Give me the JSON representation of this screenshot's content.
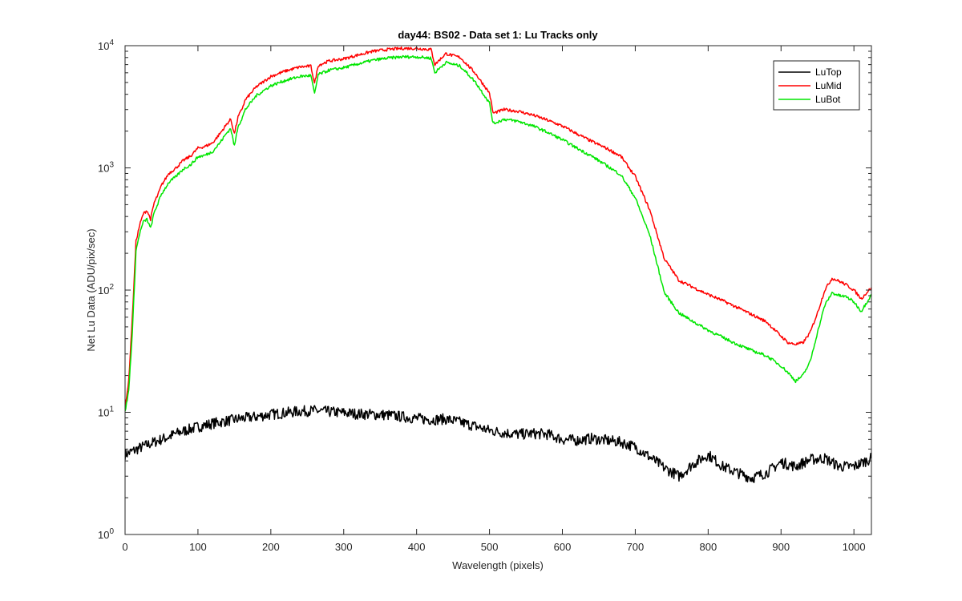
{
  "chart_data": {
    "type": "line",
    "title": "day44: BS02 - Data set 1: Lu Tracks only",
    "xlabel": "Wavelength (pixels)",
    "ylabel": "Net Lu Data (ADU/pix/sec)",
    "xlim": [
      0,
      1024
    ],
    "ylim": [
      1,
      10000
    ],
    "yscale": "log",
    "x_ticks": [
      "0",
      "100",
      "200",
      "300",
      "400",
      "500",
      "600",
      "700",
      "800",
      "900",
      "1000"
    ],
    "y_ticks": [
      {
        "base": "10",
        "exp": "0"
      },
      {
        "base": "10",
        "exp": "1"
      },
      {
        "base": "10",
        "exp": "2"
      },
      {
        "base": "10",
        "exp": "3"
      },
      {
        "base": "10",
        "exp": "4"
      }
    ],
    "grid": false,
    "legend_position": "top-right",
    "series": [
      {
        "name": "LuTop",
        "color": "#000000",
        "x": [
          0,
          10,
          20,
          30,
          40,
          50,
          60,
          70,
          80,
          90,
          100,
          120,
          140,
          160,
          180,
          200,
          220,
          240,
          260,
          280,
          300,
          320,
          340,
          360,
          380,
          400,
          420,
          440,
          460,
          480,
          500,
          520,
          540,
          560,
          580,
          600,
          620,
          640,
          660,
          680,
          700,
          720,
          740,
          760,
          780,
          800,
          820,
          840,
          860,
          880,
          900,
          920,
          940,
          960,
          980,
          1000,
          1024
        ],
        "y": [
          4.5,
          4.8,
          5.1,
          5.4,
          5.7,
          6.0,
          6.3,
          6.7,
          7.0,
          7.3,
          7.6,
          8.1,
          8.5,
          8.9,
          9.2,
          9.6,
          9.9,
          10.2,
          10.3,
          10.1,
          9.9,
          9.7,
          9.6,
          9.5,
          9.2,
          8.9,
          8.7,
          8.8,
          8.3,
          7.7,
          7.1,
          6.8,
          6.6,
          6.7,
          6.6,
          6.0,
          5.9,
          6.1,
          5.9,
          5.7,
          5.2,
          4.3,
          3.5,
          3.0,
          3.8,
          4.5,
          3.6,
          3.2,
          2.9,
          3.2,
          3.9,
          3.6,
          4.1,
          4.2,
          3.6,
          3.6,
          4.2
        ]
      },
      {
        "name": "LuMid",
        "color": "#ff0000",
        "x": [
          0,
          5,
          10,
          15,
          20,
          25,
          30,
          35,
          40,
          45,
          50,
          60,
          70,
          80,
          90,
          100,
          110,
          120,
          130,
          140,
          145,
          150,
          155,
          160,
          165,
          180,
          200,
          220,
          240,
          255,
          260,
          265,
          280,
          300,
          320,
          340,
          360,
          380,
          400,
          410,
          420,
          425,
          440,
          460,
          480,
          500,
          505,
          520,
          540,
          560,
          580,
          600,
          620,
          640,
          660,
          680,
          700,
          720,
          740,
          760,
          780,
          800,
          820,
          840,
          860,
          880,
          900,
          910,
          920,
          930,
          940,
          950,
          960,
          970,
          980,
          990,
          1000,
          1010,
          1024
        ],
        "y": [
          11,
          18,
          60,
          250,
          340,
          420,
          450,
          380,
          520,
          600,
          720,
          900,
          1000,
          1150,
          1250,
          1450,
          1500,
          1600,
          1900,
          2300,
          2500,
          1900,
          2600,
          3000,
          3600,
          4600,
          5600,
          6200,
          6700,
          6800,
          4900,
          6900,
          7500,
          7800,
          8400,
          9000,
          9300,
          9500,
          9500,
          9400,
          9300,
          7000,
          8600,
          8000,
          6000,
          4100,
          2800,
          3000,
          2900,
          2700,
          2450,
          2200,
          1900,
          1650,
          1450,
          1250,
          850,
          450,
          180,
          120,
          105,
          92,
          82,
          72,
          63,
          55,
          42,
          37,
          36,
          37,
          45,
          65,
          100,
          125,
          118,
          110,
          100,
          85,
          105
        ]
      },
      {
        "name": "LuBot",
        "color": "#00e600",
        "x": [
          0,
          5,
          10,
          15,
          20,
          25,
          30,
          35,
          40,
          45,
          50,
          60,
          70,
          80,
          90,
          100,
          110,
          120,
          130,
          140,
          145,
          150,
          155,
          160,
          165,
          180,
          200,
          220,
          240,
          255,
          260,
          265,
          280,
          300,
          320,
          340,
          360,
          380,
          400,
          410,
          420,
          425,
          440,
          460,
          480,
          500,
          505,
          520,
          540,
          560,
          580,
          600,
          620,
          640,
          660,
          680,
          700,
          720,
          740,
          760,
          780,
          800,
          820,
          840,
          860,
          880,
          900,
          910,
          920,
          930,
          940,
          950,
          960,
          970,
          980,
          990,
          1000,
          1010,
          1024
        ],
        "y": [
          10,
          15,
          45,
          210,
          290,
          360,
          380,
          320,
          430,
          510,
          610,
          760,
          850,
          980,
          1060,
          1230,
          1270,
          1360,
          1600,
          1950,
          2100,
          1500,
          2200,
          2500,
          3000,
          3900,
          4700,
          5200,
          5600,
          5700,
          4000,
          5800,
          6300,
          6600,
          7100,
          7600,
          7900,
          8100,
          8100,
          8000,
          7900,
          6000,
          7300,
          6800,
          5100,
          3400,
          2300,
          2500,
          2400,
          2200,
          1950,
          1700,
          1450,
          1250,
          1050,
          880,
          570,
          280,
          95,
          65,
          55,
          47,
          41,
          36,
          32,
          29,
          24,
          21,
          18,
          20,
          26,
          45,
          75,
          95,
          90,
          88,
          80,
          67,
          92
        ]
      }
    ]
  }
}
